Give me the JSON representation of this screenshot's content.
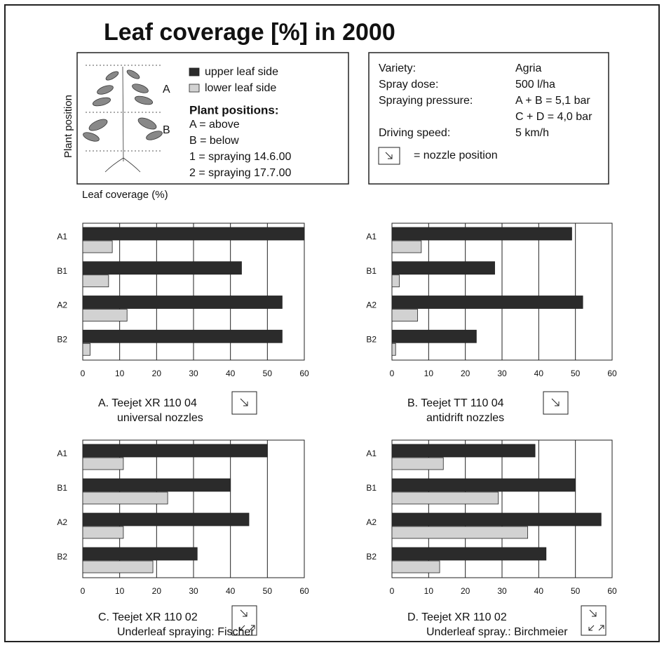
{
  "title": "Leaf coverage [%] in 2000",
  "legend": [
    {
      "name": "upper leaf side",
      "color": "#2b2b2b"
    },
    {
      "name": "lower leaf side",
      "color": "#d2d2d2"
    }
  ],
  "plant_labels": [
    "A",
    "B"
  ],
  "plant_positions": {
    "heading": "Plant positions:",
    "items": [
      "A = above",
      "B = below",
      "1 = spraying 14.6.00",
      "2 = spraying 17.7.00"
    ]
  },
  "y_axis_label": "Plant position",
  "x_axis_label": "Leaf coverage (%)",
  "info": {
    "rows": [
      {
        "label": "Variety:",
        "value": [
          "Agria"
        ]
      },
      {
        "label": "Spray dose:",
        "value": [
          "500 l/ha"
        ]
      },
      {
        "label": "Spraying pressure:",
        "value": [
          "A + B = 5,1 bar",
          "C + D = 4,0 bar"
        ]
      },
      {
        "label": "Driving speed:",
        "value": [
          "5 km/h"
        ]
      }
    ],
    "nozzle_note": "= nozzle position"
  },
  "chart_data": [
    {
      "type": "bar",
      "orientation": "horizontal",
      "categories": [
        "A1",
        "B1",
        "A2",
        "B2"
      ],
      "series": [
        {
          "values": [
            60,
            43,
            54,
            54
          ]
        },
        {
          "values": [
            8,
            7,
            12,
            2
          ]
        }
      ],
      "xlim": [
        0,
        60
      ],
      "xticks": [
        0,
        10,
        20,
        30,
        40,
        50,
        60
      ],
      "grid": true,
      "caption": [
        "A. Teejet XR 110 04",
        "universal nozzles"
      ]
    },
    {
      "type": "bar",
      "orientation": "horizontal",
      "categories": [
        "A1",
        "B1",
        "A2",
        "B2"
      ],
      "series": [
        {
          "values": [
            49,
            28,
            52,
            23
          ]
        },
        {
          "values": [
            8,
            2,
            7,
            1
          ]
        }
      ],
      "xlim": [
        0,
        60
      ],
      "xticks": [
        0,
        10,
        20,
        30,
        40,
        50,
        60
      ],
      "grid": true,
      "caption": [
        "B. Teejet TT 110 04",
        "antidrift nozzles"
      ]
    },
    {
      "type": "bar",
      "orientation": "horizontal",
      "categories": [
        "A1",
        "B1",
        "A2",
        "B2"
      ],
      "series": [
        {
          "values": [
            50,
            40,
            45,
            31
          ]
        },
        {
          "values": [
            11,
            23,
            11,
            19
          ]
        }
      ],
      "xlim": [
        0,
        60
      ],
      "xticks": [
        0,
        10,
        20,
        30,
        40,
        50,
        60
      ],
      "grid": true,
      "caption": [
        "C. Teejet XR 110 02",
        "Underleaf spraying: Fischer"
      ]
    },
    {
      "type": "bar",
      "orientation": "horizontal",
      "categories": [
        "A1",
        "B1",
        "A2",
        "B2"
      ],
      "series": [
        {
          "values": [
            39,
            50,
            57,
            42
          ]
        },
        {
          "values": [
            14,
            29,
            37,
            13
          ]
        }
      ],
      "xlim": [
        0,
        60
      ],
      "xticks": [
        0,
        10,
        20,
        30,
        40,
        50,
        60
      ],
      "grid": true,
      "caption": [
        "D. Teejet XR 110 02",
        "Underleaf spray.: Birchmeier"
      ]
    }
  ]
}
